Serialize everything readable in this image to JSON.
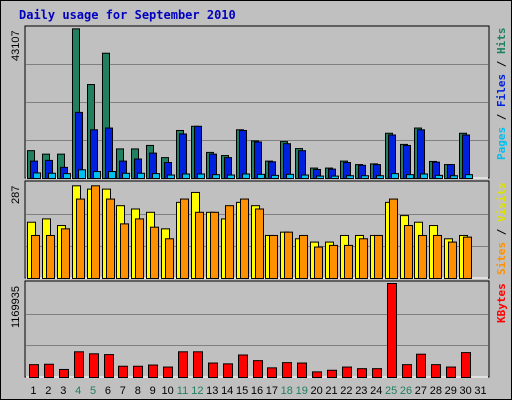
{
  "title": "Daily usage for September 2010",
  "colors": {
    "background": "#c0c0c0",
    "hits": "#208060",
    "files": "#0020e0",
    "pages": "#00c0f0",
    "visits": "#ffff00",
    "sites": "#ff9000",
    "kbytes": "#ff0000",
    "weekend_day": "#208060"
  },
  "panels": [
    {
      "name": "hits-files-pages",
      "max_label": "43107",
      "right_label": [
        {
          "text": "Pages",
          "color": "#00c0f0"
        },
        {
          "text": " / ",
          "color": "#000000"
        },
        {
          "text": "Files",
          "color": "#0020e0"
        },
        {
          "text": " / ",
          "color": "#000000"
        },
        {
          "text": "Hits",
          "color": "#208060"
        }
      ]
    },
    {
      "name": "sites-visits",
      "max_label": "287",
      "right_label": [
        {
          "text": "Sites",
          "color": "#ff9000"
        },
        {
          "text": " / ",
          "color": "#000000"
        },
        {
          "text": "Visits",
          "color": "#e0e000"
        }
      ]
    },
    {
      "name": "kbytes",
      "max_label": "1169935",
      "right_label": [
        {
          "text": "KBytes",
          "color": "#ff0000"
        }
      ]
    }
  ],
  "chart_data": {
    "type": "bar",
    "title": "Daily usage for September 2010",
    "categories": [
      "1",
      "2",
      "3",
      "4",
      "5",
      "6",
      "7",
      "8",
      "9",
      "10",
      "11",
      "12",
      "13",
      "14",
      "15",
      "16",
      "17",
      "18",
      "19",
      "20",
      "21",
      "22",
      "23",
      "24",
      "25",
      "26",
      "27",
      "28",
      "29",
      "30",
      "31"
    ],
    "weekend_days": [
      "4",
      "5",
      "11",
      "12",
      "18",
      "19",
      "25",
      "26"
    ],
    "panels": [
      {
        "name": "Hits / Files / Pages",
        "ylim": [
          0,
          43107
        ],
        "series": [
          {
            "name": "Hits",
            "values": [
              8000,
              7000,
              7000,
              43000,
              27000,
              36000,
              8500,
              8500,
              9500,
              6000,
              13800,
              15000,
              7500,
              6600,
              14000,
              10800,
              5000,
              10600,
              8600,
              3000,
              3000,
              5000,
              4000,
              4200,
              13000,
              9800,
              14500,
              4900,
              4000,
              13000,
              0
            ]
          },
          {
            "name": "Files",
            "values": [
              5000,
              5200,
              3200,
              19000,
              14000,
              14500,
              5000,
              5600,
              7300,
              4600,
              12800,
              15000,
              7000,
              6000,
              13800,
              10500,
              4800,
              10000,
              8000,
              2600,
              2700,
              4600,
              3800,
              4000,
              12500,
              9500,
              14000,
              4700,
              4000,
              12500,
              0
            ]
          },
          {
            "name": "Pages",
            "values": [
              1600,
              1500,
              1400,
              2500,
              2000,
              2000,
              1500,
              1500,
              1400,
              1000,
              1300,
              1300,
              1100,
              1000,
              1300,
              1200,
              900,
              1200,
              1000,
              700,
              700,
              800,
              800,
              800,
              1400,
              1100,
              1300,
              900,
              800,
              1100,
              0
            ]
          }
        ]
      },
      {
        "name": "Sites / Visits",
        "ylim": [
          0,
          287
        ],
        "series": [
          {
            "name": "Visits",
            "values": [
              170,
              180,
              160,
              280,
              270,
              270,
              220,
              210,
              200,
              150,
              230,
              260,
              200,
              180,
              230,
              220,
              130,
              140,
              120,
              110,
              110,
              130,
              130,
              130,
              230,
              190,
              170,
              160,
              120,
              130,
              0
            ]
          },
          {
            "name": "Sites",
            "values": [
              130,
              130,
              150,
              240,
              280,
              240,
              165,
              180,
              155,
              120,
              240,
              200,
              200,
              220,
              240,
              210,
              130,
              140,
              130,
              95,
              100,
              100,
              120,
              130,
              240,
              160,
              130,
              130,
              110,
              125,
              0
            ]
          }
        ]
      },
      {
        "name": "KBytes",
        "ylim": [
          0,
          1169935
        ],
        "series": [
          {
            "name": "KBytes",
            "values": [
              160000,
              165000,
              100000,
              320000,
              295000,
              285000,
              140000,
              140000,
              155000,
              130000,
              320000,
              320000,
              180000,
              170000,
              280000,
              210000,
              120000,
              185000,
              180000,
              70000,
              90000,
              130000,
              110000,
              110000,
              1169935,
              160000,
              290000,
              160000,
              130000,
              310000,
              0
            ]
          }
        ]
      }
    ]
  }
}
